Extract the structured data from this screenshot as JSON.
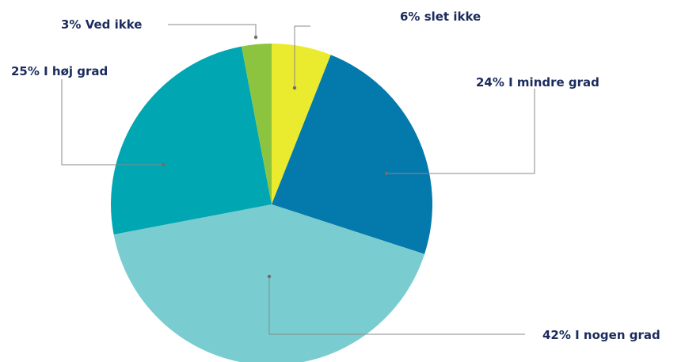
{
  "chart_data": {
    "type": "pie",
    "title": "",
    "start": "top",
    "direction": "clockwise",
    "slices": [
      {
        "label": "6% slet ikke",
        "value": 6,
        "color": "#eaea2e"
      },
      {
        "label": "24% I mindre grad",
        "value": 24,
        "color": "#0479ac"
      },
      {
        "label": "42% I nogen grad",
        "value": 42,
        "color": "#79cccf"
      },
      {
        "label": "25% I høj grad",
        "value": 25,
        "color": "#00a6b2"
      },
      {
        "label": "3% Ved ikke",
        "value": 3,
        "color": "#8cc43f"
      }
    ]
  }
}
